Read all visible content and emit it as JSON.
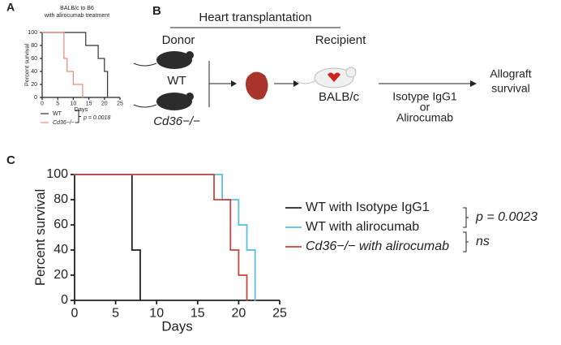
{
  "panel_labels": [
    "A",
    "B",
    "C"
  ],
  "diagram": {
    "title": "Heart transplantation",
    "donor": "Donor",
    "recipient": "Recipient",
    "donor_wt": "WT",
    "donor_ko": "Cd36−/−",
    "recipient_strain": "BALB/c",
    "treatment": [
      "Isotype IgG1",
      "or",
      "Alirocumab"
    ],
    "outcome": [
      "Allograft",
      "survival"
    ]
  },
  "chart_data": [
    {
      "type": "line",
      "step": true,
      "title": [
        "BALB/c to B6",
        "with alirocumab treatment"
      ],
      "x_label": "Days",
      "y_label": "Percent survival",
      "xlim": [
        0,
        25
      ],
      "xticks": [
        0,
        5,
        10,
        15,
        20,
        25
      ],
      "ylim": [
        0,
        100
      ],
      "yticks": [
        0,
        20,
        40,
        60,
        80,
        100
      ],
      "series": [
        {
          "name": "WT",
          "color": "#333333",
          "x": [
            0,
            14,
            18,
            20,
            21
          ],
          "values": [
            100,
            80,
            60,
            40,
            0
          ]
        },
        {
          "name": "Cd36−/−",
          "color": "#e8877a",
          "x": [
            0,
            7,
            8,
            10,
            13
          ],
          "values": [
            100,
            60,
            40,
            20,
            0
          ]
        }
      ],
      "annotations": [
        "p = 0.0018"
      ]
    },
    {
      "type": "line",
      "step": true,
      "x_label": "Days",
      "y_label": "Percent survival",
      "xlim": [
        0,
        25
      ],
      "xticks": [
        0,
        5,
        10,
        15,
        20,
        25
      ],
      "ylim": [
        0,
        100
      ],
      "yticks": [
        0,
        20,
        40,
        60,
        80,
        100
      ],
      "series": [
        {
          "name": "WT with Isotype IgG1",
          "color": "#222222",
          "x": [
            0,
            7,
            8
          ],
          "values": [
            100,
            40,
            0
          ]
        },
        {
          "name": "WT with alirocumab",
          "color": "#5bbde0",
          "x": [
            0,
            18,
            20,
            21,
            22
          ],
          "values": [
            100,
            80,
            60,
            40,
            0
          ]
        },
        {
          "name": "Cd36−/− with alirocumab",
          "color": "#c9463f",
          "x": [
            0,
            17,
            19,
            20,
            21
          ],
          "values": [
            100,
            80,
            40,
            20,
            0
          ]
        }
      ],
      "annotations": [
        "p = 0.0023",
        "ns"
      ]
    }
  ]
}
